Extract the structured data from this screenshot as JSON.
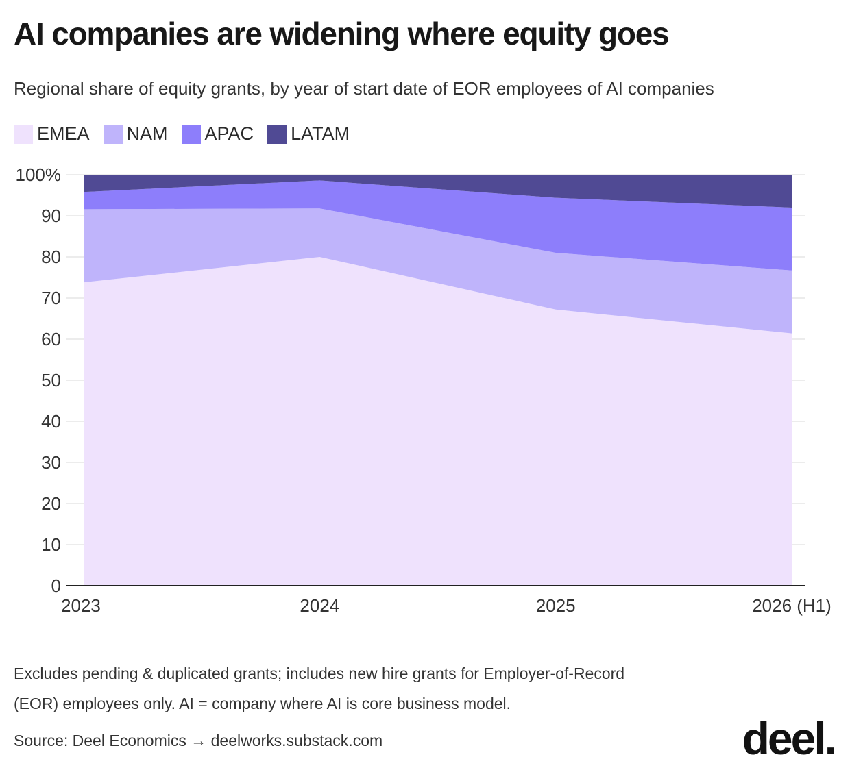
{
  "header": {
    "title": "AI companies are widening where equity goes",
    "subtitle": "Regional share of equity grants, by year of start date of EOR employees of AI companies"
  },
  "legend": {
    "items": [
      {
        "label": "EMEA",
        "color": "#efe2fd"
      },
      {
        "label": "NAM",
        "color": "#bfb4fb"
      },
      {
        "label": "APAC",
        "color": "#8d7efb"
      },
      {
        "label": "LATAM",
        "color": "#504a94"
      }
    ]
  },
  "chart_data": {
    "type": "area",
    "stacked": true,
    "categories": [
      "2023",
      "2024",
      "2025",
      "2026 (H1)"
    ],
    "series": [
      {
        "name": "EMEA",
        "values": [
          73.8,
          80.0,
          67.2,
          61.4
        ],
        "color": "#efe2fd"
      },
      {
        "name": "NAM",
        "values": [
          17.8,
          11.8,
          13.8,
          15.3
        ],
        "color": "#bfb4fb"
      },
      {
        "name": "APAC",
        "values": [
          4.2,
          6.8,
          13.4,
          15.3
        ],
        "color": "#8d7efb"
      },
      {
        "name": "LATAM",
        "values": [
          4.2,
          1.4,
          5.6,
          8.0
        ],
        "color": "#504a94"
      }
    ],
    "ylim": [
      0,
      100
    ],
    "yticks": [
      "100%",
      "90",
      "80",
      "70",
      "60",
      "50",
      "40",
      "30",
      "20",
      "10",
      "0"
    ],
    "grid": true,
    "legend_position": "top-left"
  },
  "footer": {
    "note_line1": "Excludes pending & duplicated grants; includes new hire grants for Employer-of-Record",
    "note_line2": "(EOR) employees only. AI = company where AI is core business model.",
    "source": "Source: Deel Economics → deelworks.substack.com",
    "logo": "deel."
  }
}
